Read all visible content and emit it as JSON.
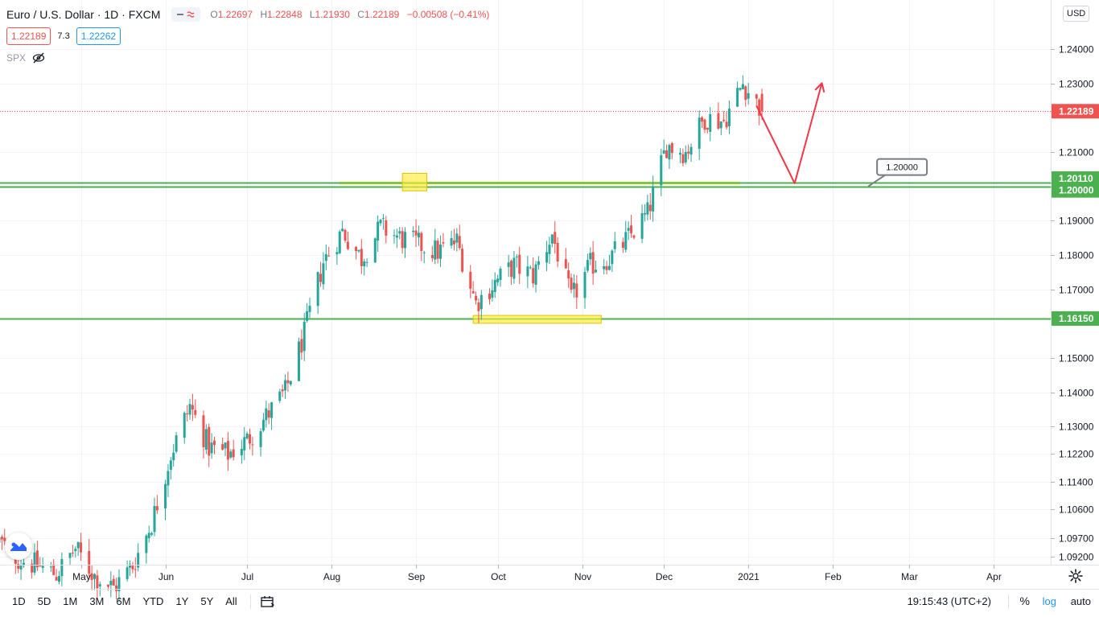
{
  "header": {
    "title": "Euro / U.S. Dollar · 1D · FXCM",
    "ohlc": {
      "o_label": "O",
      "o": "1.22697",
      "h_label": "H",
      "h": "1.22848",
      "l_label": "L",
      "l": "1.21930",
      "c_label": "C",
      "c": "1.22189",
      "change": "−0.00508 (−0.41%)"
    },
    "sell_price": "1.22189",
    "spread": "7.3",
    "buy_price": "1.22262",
    "compare_symbol": "SPX",
    "currency": "USD"
  },
  "colors": {
    "up": "#26a69a",
    "down": "#ef5350",
    "support_line": "#4caf50",
    "highlight": "#ffeb3b",
    "arrow": "#f23645",
    "grid": "#f0f3fa"
  },
  "icons": [
    "compare-icon",
    "eye-off-icon",
    "calendar-icon",
    "gear-icon",
    "tradingview-logo-icon"
  ],
  "bottom_bar": {
    "ranges": [
      "1D",
      "5D",
      "1M",
      "3M",
      "6M",
      "YTD",
      "1Y",
      "5Y",
      "All"
    ],
    "time": "19:15:43 (UTC+2)",
    "percent": "%",
    "log": "log",
    "auto": "auto"
  },
  "chart_data": {
    "type": "candlestick",
    "symbol": "EURUSD",
    "interval": "1D",
    "y_ticks": [
      1.092,
      1.0975,
      1.106,
      1.114,
      1.122,
      1.13,
      1.14,
      1.15,
      1.1615,
      1.17,
      1.18,
      1.19,
      1.2,
      1.2011,
      1.21,
      1.22189,
      1.23,
      1.24
    ],
    "y_tick_labels": [
      "1.09200",
      "1.09700",
      "1.10600",
      "1.11400",
      "1.12200",
      "1.13000",
      "1.14000",
      "1.15000",
      "1.16150",
      "1.17000",
      "1.18000",
      "1.19000",
      "1.20000",
      "1.20110",
      "1.21000",
      "1.22189",
      "1.23000",
      "1.24000"
    ],
    "x_ticks": [
      "May",
      "Jun",
      "Jul",
      "Aug",
      "Sep",
      "Oct",
      "Nov",
      "Dec",
      "2021",
      "Feb",
      "Mar",
      "Apr"
    ],
    "x_range": [
      "2020-04-01",
      "2021-04-30"
    ],
    "last_price": 1.22189,
    "price_labels": [
      {
        "value": 1.22189,
        "text": "1.22189",
        "color": "#ef5350"
      },
      {
        "value": 1.2011,
        "text": "1.20110",
        "color": "#4caf50"
      },
      {
        "value": 1.2,
        "text": "1.20000",
        "color": "#4caf50"
      },
      {
        "value": 1.1615,
        "text": "1.16150",
        "color": "#4caf50"
      }
    ],
    "horizontal_lines": [
      1.2011,
      1.2,
      1.1615
    ],
    "callout": {
      "text": "1.20000",
      "date": "2021-02-14",
      "value": 1.2
    },
    "highlight_boxes": [
      {
        "x0": "2020-08-27",
        "x1": "2020-09-05",
        "y0": 1.1987,
        "y1": 1.2038
      },
      {
        "x0": "2020-09-22",
        "x1": "2020-11-08",
        "y0": 1.1601,
        "y1": 1.1624
      }
    ],
    "support_band": {
      "x0": "2020-08-04",
      "x1": "2020-12-29",
      "y": 1.2011
    },
    "forecast_path": [
      {
        "date": "2021-01-04",
        "value": 1.2235
      },
      {
        "date": "2021-01-18",
        "value": 1.2009
      },
      {
        "date": "2021-01-28",
        "value": 1.2301
      }
    ],
    "series": [
      {
        "date": "2020-04-01",
        "value": 1.0965
      },
      {
        "date": "2020-04-08",
        "value": 1.0915
      },
      {
        "date": "2020-04-15",
        "value": 1.0895
      },
      {
        "date": "2020-04-22",
        "value": 1.087
      },
      {
        "date": "2020-04-29",
        "value": 1.0945
      },
      {
        "date": "2020-05-06",
        "value": 1.0865
      },
      {
        "date": "2020-05-13",
        "value": 1.083
      },
      {
        "date": "2020-05-20",
        "value": 1.0895
      },
      {
        "date": "2020-05-27",
        "value": 1.102
      },
      {
        "date": "2020-06-03",
        "value": 1.122
      },
      {
        "date": "2020-06-10",
        "value": 1.136
      },
      {
        "date": "2020-06-17",
        "value": 1.124
      },
      {
        "date": "2020-06-24",
        "value": 1.122
      },
      {
        "date": "2020-07-01",
        "value": 1.126
      },
      {
        "date": "2020-07-08",
        "value": 1.133
      },
      {
        "date": "2020-07-15",
        "value": 1.14
      },
      {
        "date": "2020-07-22",
        "value": 1.157
      },
      {
        "date": "2020-07-29",
        "value": 1.178
      },
      {
        "date": "2020-08-05",
        "value": 1.187
      },
      {
        "date": "2020-08-12",
        "value": 1.179
      },
      {
        "date": "2020-08-19",
        "value": 1.188
      },
      {
        "date": "2020-08-26",
        "value": 1.185
      },
      {
        "date": "2020-09-02",
        "value": 1.183
      },
      {
        "date": "2020-09-09",
        "value": 1.181
      },
      {
        "date": "2020-09-16",
        "value": 1.184
      },
      {
        "date": "2020-09-23",
        "value": 1.166
      },
      {
        "date": "2020-09-30",
        "value": 1.172
      },
      {
        "date": "2020-10-07",
        "value": 1.177
      },
      {
        "date": "2020-10-14",
        "value": 1.174
      },
      {
        "date": "2020-10-21",
        "value": 1.186
      },
      {
        "date": "2020-10-28",
        "value": 1.167
      },
      {
        "date": "2020-11-04",
        "value": 1.177
      },
      {
        "date": "2020-11-11",
        "value": 1.179
      },
      {
        "date": "2020-11-18",
        "value": 1.185
      },
      {
        "date": "2020-11-25",
        "value": 1.192
      },
      {
        "date": "2020-12-02",
        "value": 1.212
      },
      {
        "date": "2020-12-09",
        "value": 1.21
      },
      {
        "date": "2020-12-16",
        "value": 1.22
      },
      {
        "date": "2020-12-23",
        "value": 1.219
      },
      {
        "date": "2020-12-30",
        "value": 1.23
      },
      {
        "date": "2021-01-06",
        "value": 1.2219
      }
    ]
  }
}
